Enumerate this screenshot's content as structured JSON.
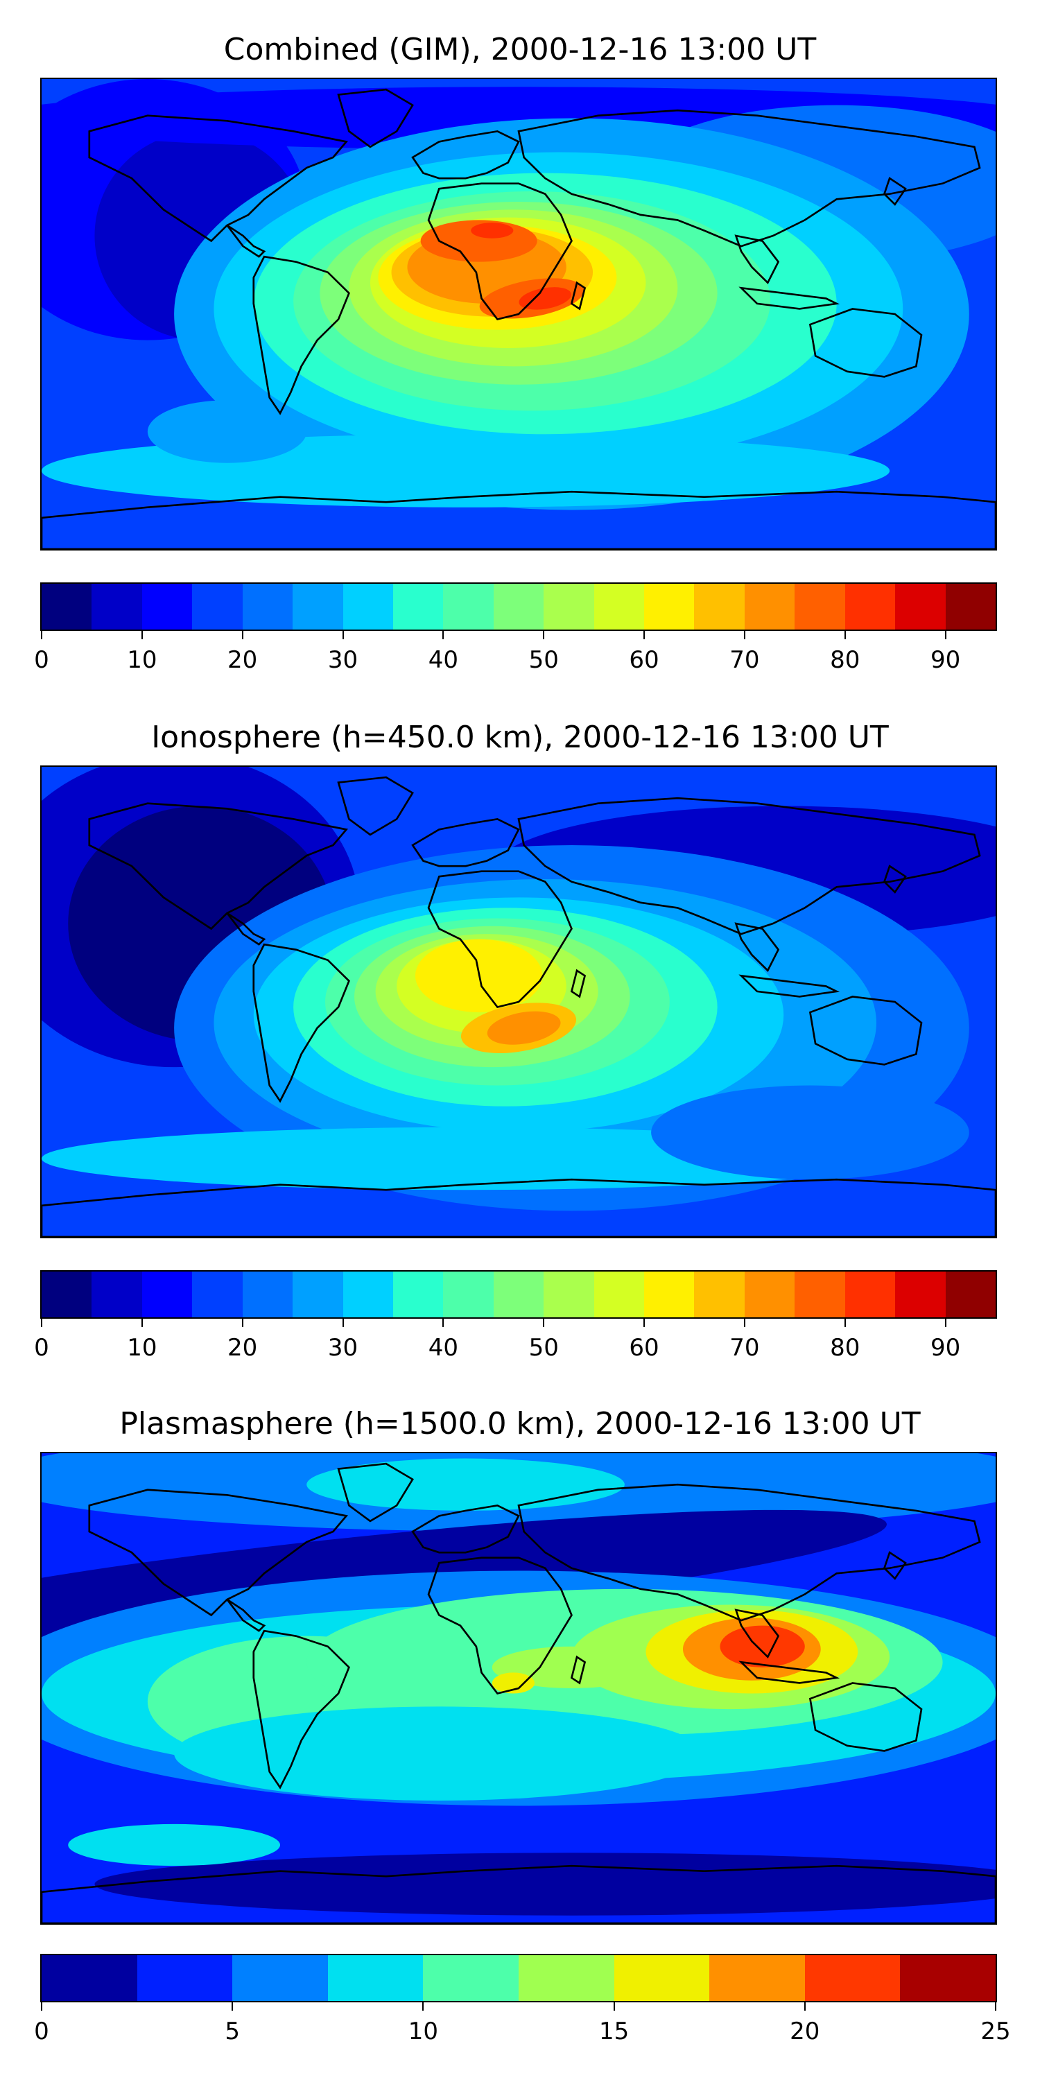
{
  "panels": [
    {
      "title": "Combined (GIM), 2000-12-16 13:00 UT",
      "scheme": "combined",
      "colorbar": {
        "levels": [
          0,
          5,
          10,
          15,
          20,
          25,
          30,
          35,
          40,
          45,
          50,
          55,
          60,
          65,
          70,
          75,
          80,
          85,
          90,
          95
        ],
        "colors": [
          "#00007f",
          "#0000c8",
          "#0000ff",
          "#0040ff",
          "#0070ff",
          "#00a0ff",
          "#00d0ff",
          "#29ffce",
          "#4dffaa",
          "#7dff7a",
          "#aaff4d",
          "#d4ff23",
          "#fff000",
          "#ffc000",
          "#ff9000",
          "#ff6000",
          "#ff3000",
          "#dc0000",
          "#900000"
        ],
        "ticks": [
          0,
          10,
          20,
          30,
          40,
          50,
          60,
          70,
          80,
          90
        ],
        "tick_labels": [
          "0",
          "10",
          "20",
          "30",
          "40",
          "50",
          "60",
          "70",
          "80",
          "90"
        ]
      }
    },
    {
      "title": "Ionosphere  (h=450.0 km), 2000-12-16 13:00 UT",
      "scheme": "ionosphere",
      "colorbar": {
        "levels": [
          0,
          5,
          10,
          15,
          20,
          25,
          30,
          35,
          40,
          45,
          50,
          55,
          60,
          65,
          70,
          75,
          80,
          85,
          90,
          95
        ],
        "colors": [
          "#00007f",
          "#0000c8",
          "#0000ff",
          "#0040ff",
          "#0070ff",
          "#00a0ff",
          "#00d0ff",
          "#29ffce",
          "#4dffaa",
          "#7dff7a",
          "#aaff4d",
          "#d4ff23",
          "#fff000",
          "#ffc000",
          "#ff9000",
          "#ff6000",
          "#ff3000",
          "#dc0000",
          "#900000"
        ],
        "ticks": [
          0,
          10,
          20,
          30,
          40,
          50,
          60,
          70,
          80,
          90
        ],
        "tick_labels": [
          "0",
          "10",
          "20",
          "30",
          "40",
          "50",
          "60",
          "70",
          "80",
          "90"
        ]
      }
    },
    {
      "title": "Plasmasphere (h=1500.0 km), 2000-12-16 13:00 UT",
      "scheme": "plasmasphere",
      "colorbar": {
        "levels": [
          0,
          2.5,
          5,
          7.5,
          10,
          12.5,
          15,
          17.5,
          20,
          22.5,
          25
        ],
        "colors": [
          "#0000a0",
          "#0020ff",
          "#0080ff",
          "#00e0f0",
          "#4dffaa",
          "#a0ff50",
          "#f0f000",
          "#ff9000",
          "#ff3800",
          "#a80000"
        ],
        "ticks": [
          0,
          5,
          10,
          15,
          20,
          25
        ],
        "tick_labels": [
          "0",
          "5",
          "10",
          "15",
          "20",
          "25"
        ]
      }
    }
  ],
  "chart_data": [
    {
      "type": "heatmap",
      "title": "Combined (GIM), 2000-12-16 13:00 UT",
      "projection": "global lon/lat map with coastlines",
      "colorbar_range": [
        0,
        95
      ],
      "colorbar_step": 5,
      "max_region": "South Atlantic / Africa (values ~80-85)",
      "values_summary": {
        "max": 85,
        "min": 5
      }
    },
    {
      "type": "heatmap",
      "title": "Ionosphere  (h=450.0 km), 2000-12-16 13:00 UT",
      "projection": "global lon/lat map with coastlines",
      "colorbar_range": [
        0,
        95
      ],
      "colorbar_step": 5,
      "max_region": "Southern Africa (values ~70-75)",
      "values_summary": {
        "max": 75,
        "min": 5
      }
    },
    {
      "type": "heatmap",
      "title": "Plasmasphere (h=1500.0 km), 2000-12-16 13:00 UT",
      "projection": "global lon/lat map with coastlines",
      "colorbar_range": [
        0,
        25
      ],
      "colorbar_step": 2.5,
      "max_region": "Southeast Asia (values ~20-22.5)",
      "values_summary": {
        "max": 22.5,
        "min": 0
      }
    }
  ]
}
